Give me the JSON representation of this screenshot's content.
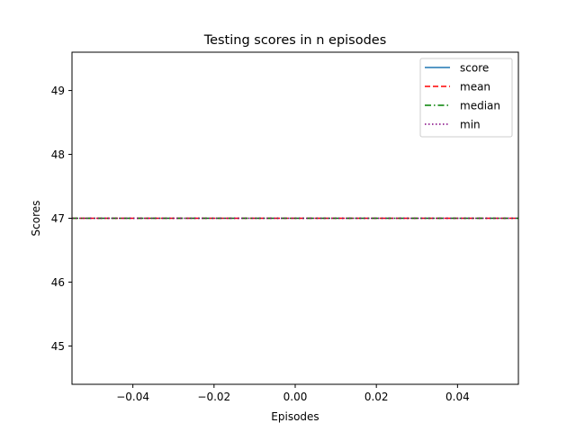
{
  "chart_data": {
    "type": "line",
    "title": "Testing scores in n episodes",
    "xlabel": "Episodes",
    "ylabel": "Scores",
    "xlim": [
      -0.055,
      0.055
    ],
    "ylim": [
      44.4,
      49.6
    ],
    "x_ticks": [
      -0.04,
      -0.02,
      0.0,
      0.02,
      0.04
    ],
    "x_tick_labels": [
      "−0.04",
      "−0.02",
      "0.00",
      "0.02",
      "0.04"
    ],
    "y_ticks": [
      45,
      46,
      47,
      48,
      49
    ],
    "y_tick_labels": [
      "45",
      "46",
      "47",
      "48",
      "49"
    ],
    "grid": false,
    "legend_position": "top-right",
    "series": [
      {
        "name": "score",
        "color": "#1f77b4",
        "style": "solid",
        "x": [
          0
        ],
        "y": [
          47
        ]
      },
      {
        "name": "mean",
        "color": "#ff0000",
        "style": "dashed",
        "x": [
          -0.055,
          0.055
        ],
        "y": [
          47,
          47
        ]
      },
      {
        "name": "median",
        "color": "#008000",
        "style": "dashdot",
        "x": [
          -0.055,
          0.055
        ],
        "y": [
          47,
          47
        ]
      },
      {
        "name": "min",
        "color": "#800080",
        "style": "dotted",
        "x": [
          -0.055,
          0.055
        ],
        "y": [
          47,
          47
        ]
      }
    ]
  }
}
